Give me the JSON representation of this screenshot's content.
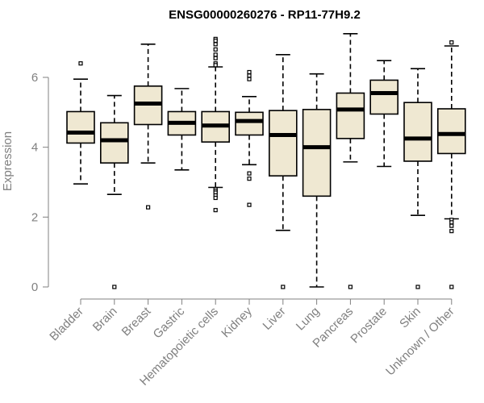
{
  "chart_data": {
    "type": "box",
    "title": "ENSG00000260276 - RP11-77H9.2",
    "xlabel": "",
    "ylabel": "Expression",
    "ylim": [
      0,
      7.3
    ],
    "yticks": [
      0,
      2,
      4,
      6
    ],
    "box_color": "#efe8d2",
    "line_color": "#000000",
    "axis_color": "#808080",
    "categories": [
      "Bladder",
      "Brain",
      "Breast",
      "Gastric",
      "Hematopoietic cells",
      "Kidney",
      "Liver",
      "Lung",
      "Pancreas",
      "Prostate",
      "Skin",
      "Unknown / Other"
    ],
    "boxes": [
      {
        "label": "Bladder",
        "whisker_low": 2.95,
        "q1": 4.12,
        "median": 4.42,
        "q3": 5.02,
        "whisker_high": 5.95,
        "outliers": [
          6.4
        ]
      },
      {
        "label": "Brain",
        "whisker_low": 2.65,
        "q1": 3.55,
        "median": 4.2,
        "q3": 4.7,
        "whisker_high": 5.48,
        "outliers": [
          0
        ]
      },
      {
        "label": "Breast",
        "whisker_low": 3.55,
        "q1": 4.65,
        "median": 5.25,
        "q3": 5.75,
        "whisker_high": 6.95,
        "outliers": [
          2.28
        ]
      },
      {
        "label": "Gastric",
        "whisker_low": 3.35,
        "q1": 4.35,
        "median": 4.7,
        "q3": 5.02,
        "whisker_high": 5.68,
        "outliers": []
      },
      {
        "label": "Hematopoietic cells",
        "whisker_low": 2.85,
        "q1": 4.15,
        "median": 4.62,
        "q3": 5.02,
        "whisker_high": 6.3,
        "outliers": [
          7.1,
          7.05,
          6.95,
          6.8,
          6.65,
          6.55,
          6.4,
          6.35,
          2.8,
          2.75,
          2.7,
          2.62,
          2.55,
          2.2
        ]
      },
      {
        "label": "Kidney",
        "whisker_low": 3.5,
        "q1": 4.35,
        "median": 4.75,
        "q3": 5.0,
        "whisker_high": 5.45,
        "outliers": [
          6.15,
          6.05,
          5.95,
          3.25,
          3.1,
          2.35
        ]
      },
      {
        "label": "Liver",
        "whisker_low": 1.62,
        "q1": 3.18,
        "median": 4.35,
        "q3": 5.05,
        "whisker_high": 6.65,
        "outliers": [
          0
        ]
      },
      {
        "label": "Lung",
        "whisker_low": 0.0,
        "q1": 2.6,
        "median": 4.0,
        "q3": 5.08,
        "whisker_high": 6.1,
        "outliers": []
      },
      {
        "label": "Pancreas",
        "whisker_low": 3.58,
        "q1": 4.25,
        "median": 5.08,
        "q3": 5.55,
        "whisker_high": 7.25,
        "outliers": [
          0
        ]
      },
      {
        "label": "Prostate",
        "whisker_low": 3.45,
        "q1": 4.95,
        "median": 5.55,
        "q3": 5.92,
        "whisker_high": 6.48,
        "outliers": []
      },
      {
        "label": "Skin",
        "whisker_low": 2.05,
        "q1": 3.6,
        "median": 4.25,
        "q3": 5.28,
        "whisker_high": 6.25,
        "outliers": [
          0
        ]
      },
      {
        "label": "Unknown / Other",
        "whisker_low": 1.95,
        "q1": 3.82,
        "median": 4.38,
        "q3": 5.1,
        "whisker_high": 6.9,
        "outliers": [
          7.0,
          1.92,
          1.85,
          1.75,
          1.6,
          0
        ]
      }
    ]
  }
}
